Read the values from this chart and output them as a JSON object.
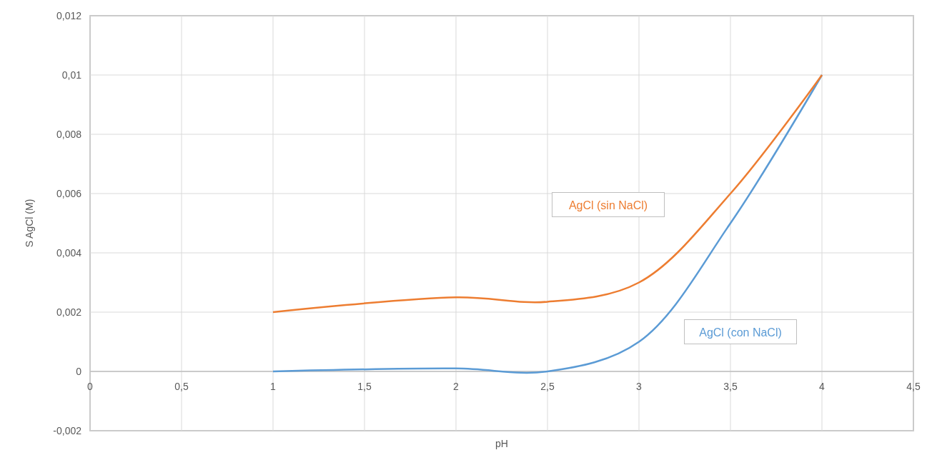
{
  "chart_data": {
    "type": "line",
    "xlabel": "pH",
    "ylabel": "S AgCl (M)",
    "xlim": [
      0,
      4.5
    ],
    "xticks": [
      0,
      {
        "value": 0.5,
        "label": "0,5"
      },
      1,
      {
        "value": 1.5,
        "label": "1,5"
      },
      2,
      {
        "value": 2.5,
        "label": "2,5"
      },
      3,
      {
        "value": 3.5,
        "label": "3,5"
      },
      4,
      {
        "value": 4.5,
        "label": "4,5"
      }
    ],
    "ylim": [
      -0.002,
      0.012
    ],
    "yticks": [
      {
        "value": -0.002,
        "label": "-0,002"
      },
      0,
      {
        "value": 0.002,
        "label": "0,002"
      },
      {
        "value": 0.004,
        "label": "0,004"
      },
      {
        "value": 0.006,
        "label": "0,006"
      },
      {
        "value": 0.008,
        "label": "0,008"
      },
      {
        "value": 0.01,
        "label": "0,01"
      },
      {
        "value": 0.012,
        "label": "0,012"
      }
    ],
    "grid": true,
    "marker": "none",
    "line_style": "solid",
    "x": [
      1,
      2,
      2.5,
      3,
      3.5,
      4
    ],
    "series": [
      {
        "name": "AgCl (con NaCl)",
        "color": "#5b9bd5",
        "values": [
          0,
          0.0001,
          0,
          0.001,
          0.005,
          0.01
        ]
      },
      {
        "name": "AgCl (sin NaCl)",
        "color": "#ed7d31",
        "values": [
          0.002,
          0.0025,
          0.00235,
          0.003,
          0.006,
          0.01
        ]
      }
    ]
  }
}
